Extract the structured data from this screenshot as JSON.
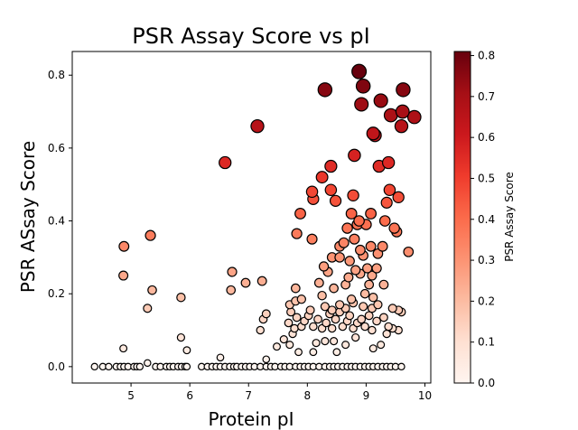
{
  "chart_data": {
    "type": "scatter",
    "title": "PSR Assay Score vs pI",
    "xlabel": "Protein pI",
    "ylabel": "PSR ASsay Score",
    "xlim": [
      4.0,
      10.1
    ],
    "ylim": [
      -0.045,
      0.865
    ],
    "xticks": [
      5,
      6,
      7,
      8,
      9,
      10
    ],
    "yticks": [
      0.0,
      0.2,
      0.4,
      0.6,
      0.8
    ],
    "grid": false,
    "colorbar": {
      "label": "PSR Assay Score",
      "range": [
        0.0,
        0.81
      ],
      "ticks": [
        0.0,
        0.1,
        0.2,
        0.3,
        0.4,
        0.5,
        0.6,
        0.7,
        0.8
      ],
      "colormap": "Reds"
    },
    "marker_size_encodes": "PSR Assay Score",
    "points": [
      {
        "x": 4.38,
        "y": 0.0
      },
      {
        "x": 4.52,
        "y": 0.0
      },
      {
        "x": 4.62,
        "y": 0.0
      },
      {
        "x": 4.75,
        "y": 0.0
      },
      {
        "x": 4.82,
        "y": 0.0
      },
      {
        "x": 4.88,
        "y": 0.0
      },
      {
        "x": 4.95,
        "y": 0.0
      },
      {
        "x": 5.05,
        "y": 0.0
      },
      {
        "x": 5.1,
        "y": 0.0
      },
      {
        "x": 5.15,
        "y": 0.0
      },
      {
        "x": 5.42,
        "y": 0.0
      },
      {
        "x": 5.5,
        "y": 0.0
      },
      {
        "x": 5.6,
        "y": 0.0
      },
      {
        "x": 5.66,
        "y": 0.0
      },
      {
        "x": 5.72,
        "y": 0.0
      },
      {
        "x": 5.8,
        "y": 0.0
      },
      {
        "x": 5.86,
        "y": 0.0
      },
      {
        "x": 5.92,
        "y": 0.0
      },
      {
        "x": 5.95,
        "y": 0.0
      },
      {
        "x": 6.2,
        "y": 0.0
      },
      {
        "x": 6.3,
        "y": 0.0
      },
      {
        "x": 6.38,
        "y": 0.0
      },
      {
        "x": 6.45,
        "y": 0.0
      },
      {
        "x": 6.52,
        "y": 0.0
      },
      {
        "x": 6.6,
        "y": 0.0
      },
      {
        "x": 6.68,
        "y": 0.0
      },
      {
        "x": 6.75,
        "y": 0.0
      },
      {
        "x": 6.8,
        "y": 0.0
      },
      {
        "x": 6.88,
        "y": 0.0
      },
      {
        "x": 6.95,
        "y": 0.0
      },
      {
        "x": 7.02,
        "y": 0.0
      },
      {
        "x": 7.1,
        "y": 0.0
      },
      {
        "x": 7.2,
        "y": 0.0
      },
      {
        "x": 7.3,
        "y": 0.0
      },
      {
        "x": 7.38,
        "y": 0.0
      },
      {
        "x": 7.45,
        "y": 0.0
      },
      {
        "x": 7.55,
        "y": 0.0
      },
      {
        "x": 7.62,
        "y": 0.0
      },
      {
        "x": 7.7,
        "y": 0.0
      },
      {
        "x": 7.8,
        "y": 0.0
      },
      {
        "x": 7.88,
        "y": 0.0
      },
      {
        "x": 7.95,
        "y": 0.0
      },
      {
        "x": 8.02,
        "y": 0.0
      },
      {
        "x": 8.1,
        "y": 0.0
      },
      {
        "x": 8.2,
        "y": 0.0
      },
      {
        "x": 8.3,
        "y": 0.0
      },
      {
        "x": 8.38,
        "y": 0.0
      },
      {
        "x": 8.45,
        "y": 0.0
      },
      {
        "x": 8.52,
        "y": 0.0
      },
      {
        "x": 8.6,
        "y": 0.0
      },
      {
        "x": 8.68,
        "y": 0.0
      },
      {
        "x": 8.75,
        "y": 0.0
      },
      {
        "x": 8.82,
        "y": 0.0
      },
      {
        "x": 8.9,
        "y": 0.0
      },
      {
        "x": 8.98,
        "y": 0.0
      },
      {
        "x": 9.05,
        "y": 0.0
      },
      {
        "x": 9.12,
        "y": 0.0
      },
      {
        "x": 9.2,
        "y": 0.0
      },
      {
        "x": 9.28,
        "y": 0.0
      },
      {
        "x": 9.35,
        "y": 0.0
      },
      {
        "x": 9.42,
        "y": 0.0
      },
      {
        "x": 9.5,
        "y": 0.0
      },
      {
        "x": 9.6,
        "y": 0.0
      },
      {
        "x": 4.87,
        "y": 0.05
      },
      {
        "x": 5.28,
        "y": 0.01
      },
      {
        "x": 5.85,
        "y": 0.08
      },
      {
        "x": 5.95,
        "y": 0.045
      },
      {
        "x": 6.52,
        "y": 0.025
      },
      {
        "x": 7.3,
        "y": 0.02
      },
      {
        "x": 7.48,
        "y": 0.055
      },
      {
        "x": 7.6,
        "y": 0.075
      },
      {
        "x": 7.7,
        "y": 0.06
      },
      {
        "x": 7.75,
        "y": 0.09
      },
      {
        "x": 7.85,
        "y": 0.04
      },
      {
        "x": 8.15,
        "y": 0.065
      },
      {
        "x": 8.1,
        "y": 0.04
      },
      {
        "x": 8.3,
        "y": 0.07
      },
      {
        "x": 8.45,
        "y": 0.07
      },
      {
        "x": 8.5,
        "y": 0.04
      },
      {
        "x": 8.65,
        "y": 0.06
      },
      {
        "x": 8.82,
        "y": 0.08
      },
      {
        "x": 9.12,
        "y": 0.05
      },
      {
        "x": 9.25,
        "y": 0.06
      },
      {
        "x": 9.35,
        "y": 0.09
      },
      {
        "x": 9.45,
        "y": 0.105
      },
      {
        "x": 9.55,
        "y": 0.1
      },
      {
        "x": 7.2,
        "y": 0.1
      },
      {
        "x": 7.25,
        "y": 0.13
      },
      {
        "x": 7.3,
        "y": 0.145
      },
      {
        "x": 7.68,
        "y": 0.12
      },
      {
        "x": 7.72,
        "y": 0.15
      },
      {
        "x": 7.78,
        "y": 0.105
      },
      {
        "x": 7.82,
        "y": 0.135
      },
      {
        "x": 7.9,
        "y": 0.11
      },
      {
        "x": 7.95,
        "y": 0.125
      },
      {
        "x": 8.02,
        "y": 0.14
      },
      {
        "x": 8.1,
        "y": 0.11
      },
      {
        "x": 8.18,
        "y": 0.13
      },
      {
        "x": 8.25,
        "y": 0.105
      },
      {
        "x": 8.32,
        "y": 0.12
      },
      {
        "x": 8.38,
        "y": 0.145
      },
      {
        "x": 8.42,
        "y": 0.105
      },
      {
        "x": 8.48,
        "y": 0.13
      },
      {
        "x": 8.55,
        "y": 0.15
      },
      {
        "x": 8.6,
        "y": 0.11
      },
      {
        "x": 8.68,
        "y": 0.125
      },
      {
        "x": 8.72,
        "y": 0.14
      },
      {
        "x": 8.78,
        "y": 0.105
      },
      {
        "x": 8.85,
        "y": 0.12
      },
      {
        "x": 8.92,
        "y": 0.13
      },
      {
        "x": 8.98,
        "y": 0.11
      },
      {
        "x": 9.05,
        "y": 0.14
      },
      {
        "x": 9.1,
        "y": 0.1
      },
      {
        "x": 9.18,
        "y": 0.125
      },
      {
        "x": 9.3,
        "y": 0.135
      },
      {
        "x": 9.38,
        "y": 0.11
      },
      {
        "x": 9.6,
        "y": 0.15
      },
      {
        "x": 7.7,
        "y": 0.17
      },
      {
        "x": 7.8,
        "y": 0.18
      },
      {
        "x": 7.9,
        "y": 0.185
      },
      {
        "x": 8.05,
        "y": 0.155
      },
      {
        "x": 8.3,
        "y": 0.165
      },
      {
        "x": 8.42,
        "y": 0.155
      },
      {
        "x": 8.55,
        "y": 0.17
      },
      {
        "x": 8.65,
        "y": 0.16
      },
      {
        "x": 8.78,
        "y": 0.175
      },
      {
        "x": 8.95,
        "y": 0.165
      },
      {
        "x": 9.1,
        "y": 0.16
      },
      {
        "x": 9.2,
        "y": 0.17
      },
      {
        "x": 9.45,
        "y": 0.16
      },
      {
        "x": 9.55,
        "y": 0.155
      },
      {
        "x": 4.87,
        "y": 0.25
      },
      {
        "x": 4.88,
        "y": 0.33
      },
      {
        "x": 5.28,
        "y": 0.16
      },
      {
        "x": 5.36,
        "y": 0.21
      },
      {
        "x": 5.33,
        "y": 0.36
      },
      {
        "x": 5.85,
        "y": 0.19
      },
      {
        "x": 6.6,
        "y": 0.56
      },
      {
        "x": 6.7,
        "y": 0.21
      },
      {
        "x": 6.72,
        "y": 0.26
      },
      {
        "x": 6.95,
        "y": 0.23
      },
      {
        "x": 7.15,
        "y": 0.66
      },
      {
        "x": 7.23,
        "y": 0.235
      },
      {
        "x": 7.8,
        "y": 0.215
      },
      {
        "x": 7.82,
        "y": 0.365
      },
      {
        "x": 7.88,
        "y": 0.42
      },
      {
        "x": 8.08,
        "y": 0.35
      },
      {
        "x": 8.08,
        "y": 0.48
      },
      {
        "x": 8.1,
        "y": 0.46
      },
      {
        "x": 8.2,
        "y": 0.23
      },
      {
        "x": 8.25,
        "y": 0.195
      },
      {
        "x": 8.25,
        "y": 0.52
      },
      {
        "x": 8.3,
        "y": 0.76
      },
      {
        "x": 8.28,
        "y": 0.275
      },
      {
        "x": 8.35,
        "y": 0.26
      },
      {
        "x": 8.4,
        "y": 0.485
      },
      {
        "x": 8.4,
        "y": 0.55
      },
      {
        "x": 8.42,
        "y": 0.3
      },
      {
        "x": 8.45,
        "y": 0.215
      },
      {
        "x": 8.48,
        "y": 0.455
      },
      {
        "x": 8.55,
        "y": 0.3
      },
      {
        "x": 8.55,
        "y": 0.33
      },
      {
        "x": 8.62,
        "y": 0.34
      },
      {
        "x": 8.65,
        "y": 0.225
      },
      {
        "x": 8.68,
        "y": 0.38
      },
      {
        "x": 8.7,
        "y": 0.245
      },
      {
        "x": 8.72,
        "y": 0.29
      },
      {
        "x": 8.75,
        "y": 0.185
      },
      {
        "x": 8.75,
        "y": 0.42
      },
      {
        "x": 8.78,
        "y": 0.47
      },
      {
        "x": 8.8,
        "y": 0.58
      },
      {
        "x": 8.8,
        "y": 0.35
      },
      {
        "x": 8.82,
        "y": 0.265
      },
      {
        "x": 8.85,
        "y": 0.39
      },
      {
        "x": 8.88,
        "y": 0.81
      },
      {
        "x": 8.88,
        "y": 0.4
      },
      {
        "x": 8.9,
        "y": 0.32
      },
      {
        "x": 8.9,
        "y": 0.255
      },
      {
        "x": 8.92,
        "y": 0.72
      },
      {
        "x": 8.95,
        "y": 0.77
      },
      {
        "x": 8.95,
        "y": 0.305
      },
      {
        "x": 8.98,
        "y": 0.2
      },
      {
        "x": 9.0,
        "y": 0.39
      },
      {
        "x": 9.02,
        "y": 0.27
      },
      {
        "x": 9.05,
        "y": 0.225
      },
      {
        "x": 9.08,
        "y": 0.42
      },
      {
        "x": 9.08,
        "y": 0.33
      },
      {
        "x": 9.1,
        "y": 0.25
      },
      {
        "x": 9.12,
        "y": 0.64
      },
      {
        "x": 9.12,
        "y": 0.19
      },
      {
        "x": 9.15,
        "y": 0.635
      },
      {
        "x": 9.18,
        "y": 0.27
      },
      {
        "x": 9.2,
        "y": 0.31
      },
      {
        "x": 9.22,
        "y": 0.55
      },
      {
        "x": 9.25,
        "y": 0.73
      },
      {
        "x": 9.28,
        "y": 0.33
      },
      {
        "x": 9.3,
        "y": 0.225
      },
      {
        "x": 9.32,
        "y": 0.4
      },
      {
        "x": 9.35,
        "y": 0.45
      },
      {
        "x": 9.38,
        "y": 0.56
      },
      {
        "x": 9.4,
        "y": 0.485
      },
      {
        "x": 9.42,
        "y": 0.69
      },
      {
        "x": 9.48,
        "y": 0.38
      },
      {
        "x": 9.52,
        "y": 0.37
      },
      {
        "x": 9.55,
        "y": 0.465
      },
      {
        "x": 9.6,
        "y": 0.66
      },
      {
        "x": 9.62,
        "y": 0.7
      },
      {
        "x": 9.63,
        "y": 0.76
      },
      {
        "x": 9.72,
        "y": 0.315
      },
      {
        "x": 9.82,
        "y": 0.685
      }
    ]
  }
}
